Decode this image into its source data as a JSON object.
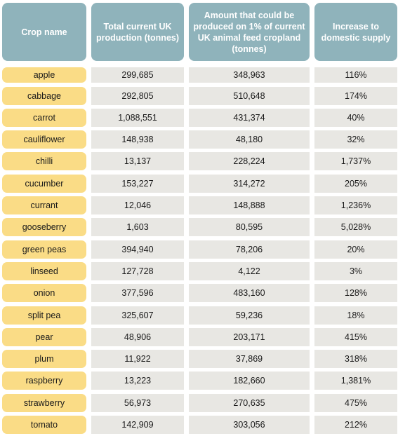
{
  "table": {
    "headers": [
      "Crop name",
      "Total current UK production (tonnes)",
      "Amount that could be produced on 1% of current UK animal feed cropland (tonnes)",
      "Increase to domestic supply"
    ],
    "rows": [
      {
        "crop": "apple",
        "total": "299,685",
        "amount": "348,963",
        "increase": "116%"
      },
      {
        "crop": "cabbage",
        "total": "292,805",
        "amount": "510,648",
        "increase": "174%"
      },
      {
        "crop": "carrot",
        "total": "1,088,551",
        "amount": "431,374",
        "increase": "40%"
      },
      {
        "crop": "cauliflower",
        "total": "148,938",
        "amount": "48,180",
        "increase": "32%"
      },
      {
        "crop": "chilli",
        "total": "13,137",
        "amount": "228,224",
        "increase": "1,737%"
      },
      {
        "crop": "cucumber",
        "total": "153,227",
        "amount": "314,272",
        "increase": "205%"
      },
      {
        "crop": "currant",
        "total": "12,046",
        "amount": "148,888",
        "increase": "1,236%"
      },
      {
        "crop": "gooseberry",
        "total": "1,603",
        "amount": "80,595",
        "increase": "5,028%"
      },
      {
        "crop": "green peas",
        "total": "394,940",
        "amount": "78,206",
        "increase": "20%"
      },
      {
        "crop": "linseed",
        "total": "127,728",
        "amount": "4,122",
        "increase": "3%"
      },
      {
        "crop": "onion",
        "total": "377,596",
        "amount": "483,160",
        "increase": "128%"
      },
      {
        "crop": "split pea",
        "total": "325,607",
        "amount": "59,236",
        "increase": "18%"
      },
      {
        "crop": "pear",
        "total": "48,906",
        "amount": "203,171",
        "increase": "415%"
      },
      {
        "crop": "plum",
        "total": "11,922",
        "amount": "37,869",
        "increase": "318%"
      },
      {
        "crop": "raspberry",
        "total": "13,223",
        "amount": "182,660",
        "increase": "1,381%"
      },
      {
        "crop": "strawberry",
        "total": "56,973",
        "amount": "270,635",
        "increase": "475%"
      },
      {
        "crop": "tomato",
        "total": "142,909",
        "amount": "303,056",
        "increase": "212%"
      }
    ]
  },
  "colors": {
    "header_bg": "#8fb3bb",
    "crop_bg": "#fadc86",
    "cell_bg": "#e8e7e3"
  }
}
